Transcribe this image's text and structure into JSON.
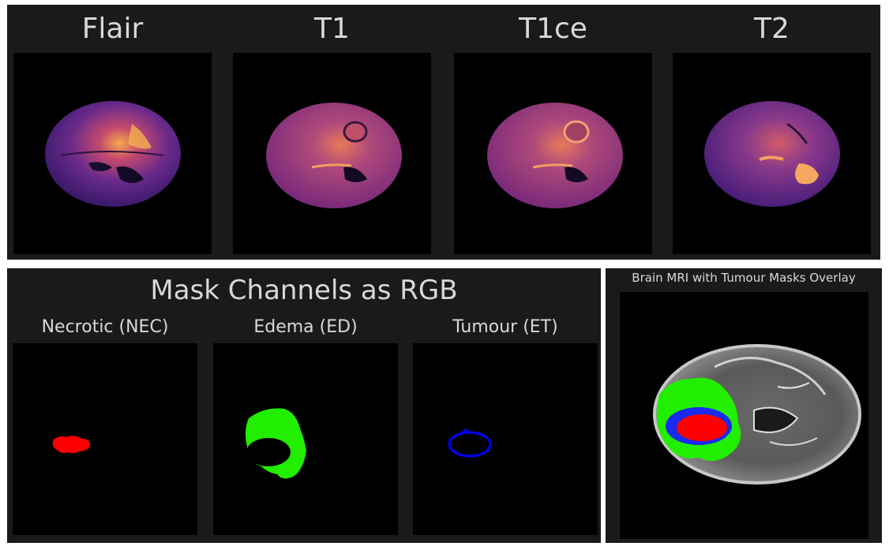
{
  "top_panel": {
    "titles": [
      "Flair",
      "T1",
      "T1ce",
      "T2"
    ]
  },
  "mask_panel": {
    "title": "Mask Channels as RGB",
    "subtitles": [
      "Necrotic (NEC)",
      "Edema (ED)",
      "Tumour (ET)"
    ]
  },
  "overlay_panel": {
    "title": "Brain MRI with Tumour Masks Overlay"
  },
  "colors": {
    "panel_bg": "#1a1a1a",
    "necrotic": "#ff0000",
    "edema": "#00ff00",
    "tumour": "#0000ff",
    "colormap": "magma"
  }
}
